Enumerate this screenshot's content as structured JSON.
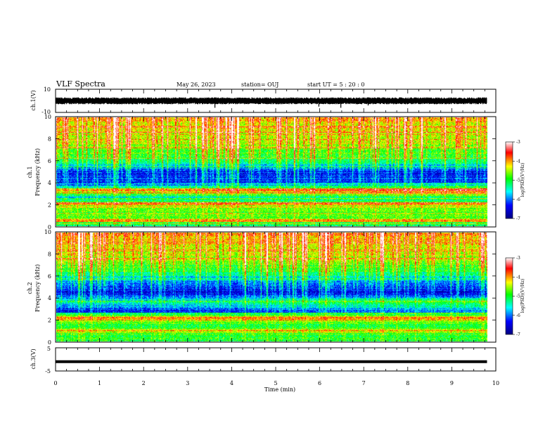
{
  "header": {
    "title": "VLF Spectra",
    "date": "May 26, 2023",
    "station": "station= OUJ",
    "start": "start  UT =   5  : 20 : 0"
  },
  "chart_data": [
    {
      "type": "line",
      "panel": "ch1-waveform",
      "ylabel": "ch.1(V)",
      "ylim": [
        -10,
        10
      ],
      "ytick_labels": [
        "10",
        "-10"
      ],
      "xlim": [
        0,
        10
      ],
      "data_end_min": 9.8,
      "series": [
        {
          "values": [
            0,
            3,
            -2,
            2,
            -3,
            1,
            -1,
            2,
            -2,
            0
          ],
          "spikes": [
            {
              "t": 3.62,
              "v": -6
            },
            {
              "t": 5.98,
              "v": -5
            },
            {
              "t": 6.48,
              "v": -6
            },
            {
              "t": 7.1,
              "v": -4
            }
          ]
        }
      ],
      "mean_v": 0,
      "noise_band_v": 3
    },
    {
      "type": "heatmap",
      "panel": "ch1-spectrogram",
      "ylabel_line1": "ch.1",
      "ylabel_line2": "Frequency (kHz)",
      "ylim": [
        0,
        10
      ],
      "ytick_labels": [
        "0",
        "2",
        "4",
        "6",
        "8",
        "10"
      ],
      "xlim": [
        0,
        10
      ],
      "data_end_min": 9.8,
      "colorbar": {
        "label": "log(PSD)(V²/Hz)",
        "range": [
          -7,
          -3
        ],
        "tick_labels": [
          "-3",
          "-4",
          "-5",
          "-6",
          "-7"
        ],
        "colors": [
          "#000080",
          "#0000ff",
          "#00ffff",
          "#00ff00",
          "#ffff00",
          "#ff0000",
          "#ffffff"
        ]
      },
      "profile": [
        {
          "f": 0.0,
          "v": -5.3
        },
        {
          "f": 0.5,
          "v": -4.6
        },
        {
          "f": 1.2,
          "v": -4.9
        },
        {
          "f": 2.0,
          "v": -4.4
        },
        {
          "f": 2.6,
          "v": -5.8
        },
        {
          "f": 3.2,
          "v": -4.3
        },
        {
          "f": 3.8,
          "v": -6.2
        },
        {
          "f": 5.0,
          "v": -6.3
        },
        {
          "f": 6.2,
          "v": -5.1
        },
        {
          "f": 7.5,
          "v": -4.5
        },
        {
          "f": 10.0,
          "v": -4.1
        }
      ],
      "bands": [
        {
          "f": 2.05,
          "v": -3.6
        },
        {
          "f": 3.35,
          "v": -4.0
        },
        {
          "f": 0.45,
          "v": -3.7
        }
      ]
    },
    {
      "type": "heatmap",
      "panel": "ch2-spectrogram",
      "ylabel_line1": "ch.2",
      "ylabel_line2": "Frequency (kHz)",
      "ylim": [
        0,
        10
      ],
      "ytick_labels": [
        "0",
        "2",
        "4",
        "6",
        "8",
        "10"
      ],
      "xlim": [
        0,
        10
      ],
      "data_end_min": 9.8,
      "colorbar": {
        "label": "log(PSD)(V²/Hz)",
        "range": [
          -7,
          -3
        ],
        "tick_labels": [
          "-3",
          "-4",
          "-5",
          "-6",
          "-7"
        ],
        "colors": [
          "#000080",
          "#0000ff",
          "#00ffff",
          "#00ff00",
          "#ffff00",
          "#ff0000",
          "#ffffff"
        ]
      },
      "profile": [
        {
          "f": 0.0,
          "v": -5.0
        },
        {
          "f": 0.8,
          "v": -4.8
        },
        {
          "f": 1.5,
          "v": -5.0
        },
        {
          "f": 2.2,
          "v": -4.3
        },
        {
          "f": 2.9,
          "v": -6.3
        },
        {
          "f": 3.6,
          "v": -5.6
        },
        {
          "f": 4.5,
          "v": -6.4
        },
        {
          "f": 5.5,
          "v": -6.0
        },
        {
          "f": 6.5,
          "v": -5.0
        },
        {
          "f": 8.0,
          "v": -4.4
        },
        {
          "f": 10.0,
          "v": -4.0
        }
      ],
      "bands": [
        {
          "f": 2.1,
          "v": -3.6
        },
        {
          "f": 2.75,
          "v": -6.9
        },
        {
          "f": 1.0,
          "v": -4.2
        }
      ]
    },
    {
      "type": "line",
      "panel": "ch3-waveform",
      "ylabel": "ch.3(V)",
      "ylim": [
        -5,
        5
      ],
      "ytick_labels": [
        "5",
        "-5"
      ],
      "xlim": [
        0,
        10
      ],
      "data_end_min": 9.8,
      "series": [
        {
          "values": [
            -1,
            -1,
            -1,
            -1,
            -1,
            -1,
            -1,
            -1,
            -1,
            -1
          ]
        }
      ]
    }
  ],
  "xaxis": {
    "label": "Time (min)",
    "tick_labels": [
      "0",
      "1",
      "2",
      "3",
      "4",
      "5",
      "6",
      "7",
      "8",
      "9",
      "10"
    ],
    "range": [
      0,
      10
    ]
  }
}
